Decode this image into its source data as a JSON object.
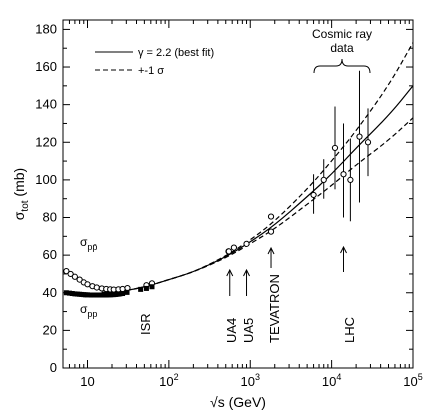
{
  "chart_data": {
    "type": "scatter",
    "title": "",
    "xlabel": "√s (GeV)",
    "ylabel": "σtot (mb)",
    "xscale": "log",
    "xlim": [
      5,
      100000
    ],
    "ylim": [
      0,
      185
    ],
    "x_ticks": [
      10,
      100,
      1000,
      10000,
      100000
    ],
    "x_tick_labels": [
      {
        "base": "10",
        "exp": ""
      },
      {
        "base": "10",
        "exp": "2"
      },
      {
        "base": "10",
        "exp": "3"
      },
      {
        "base": "10",
        "exp": "4"
      },
      {
        "base": "10",
        "exp": "5"
      }
    ],
    "y_ticks": [
      0,
      20,
      40,
      60,
      80,
      100,
      120,
      140,
      160,
      180
    ],
    "legend": {
      "position": "top-left",
      "entries": [
        {
          "label": "γ = 2.2 (best fit)",
          "style": "solid"
        },
        {
          "label": "+-1 σ",
          "style": "dashed"
        }
      ]
    },
    "series": [
      {
        "name": "σpp̄",
        "marker": "open-circle",
        "points": [
          [
            5.5,
            51.5
          ],
          [
            6.2,
            50
          ],
          [
            7,
            48.5
          ],
          [
            8,
            47
          ],
          [
            9,
            45.5
          ],
          [
            10,
            44.5
          ],
          [
            11.5,
            43.5
          ],
          [
            13,
            42.8
          ],
          [
            15,
            42.3
          ],
          [
            17,
            42
          ],
          [
            19,
            41.8
          ],
          [
            21,
            41.7
          ],
          [
            24,
            41.8
          ],
          [
            27,
            42
          ],
          [
            31,
            42.5
          ],
          [
            53,
            44
          ],
          [
            62,
            45
          ],
          [
            540,
            62
          ],
          [
            546,
            62
          ],
          [
            630,
            64
          ],
          [
            900,
            66
          ],
          [
            1800,
            80.5
          ],
          [
            1800,
            72.5
          ]
        ]
      },
      {
        "name": "σpp",
        "marker": "filled-square",
        "points": [
          [
            5.5,
            40
          ],
          [
            6,
            39.8
          ],
          [
            6.5,
            39.6
          ],
          [
            7,
            39.4
          ],
          [
            7.5,
            39.3
          ],
          [
            8,
            39.2
          ],
          [
            8.5,
            39.1
          ],
          [
            9,
            39
          ],
          [
            9.5,
            38.9
          ],
          [
            10,
            38.9
          ],
          [
            11,
            38.8
          ],
          [
            12,
            38.8
          ],
          [
            13,
            38.8
          ],
          [
            14,
            38.8
          ],
          [
            15,
            38.8
          ],
          [
            16,
            38.8
          ],
          [
            17,
            38.8
          ],
          [
            18,
            38.9
          ],
          [
            19,
            38.9
          ],
          [
            20,
            39
          ],
          [
            21,
            39
          ],
          [
            22,
            39.1
          ],
          [
            23,
            39.2
          ],
          [
            24,
            39.3
          ],
          [
            25,
            39.4
          ],
          [
            27,
            39.6
          ],
          [
            30.6,
            40.2
          ],
          [
            45,
            41.8
          ],
          [
            53,
            42.3
          ],
          [
            62,
            43.2
          ]
        ]
      },
      {
        "name": "Cosmic ray data",
        "marker": "open-circle-errorbar",
        "points": [
          {
            "x": 6000,
            "y": 92,
            "lo": 82,
            "hi": 103
          },
          {
            "x": 8000,
            "y": 100,
            "lo": 90,
            "hi": 111
          },
          {
            "x": 11000,
            "y": 117,
            "lo": 95,
            "hi": 139
          },
          {
            "x": 14000,
            "y": 103,
            "lo": 80,
            "hi": 130
          },
          {
            "x": 17000,
            "y": 100,
            "lo": 78,
            "hi": 122
          },
          {
            "x": 22000,
            "y": 123,
            "lo": 88,
            "hi": 158
          },
          {
            "x": 28000,
            "y": 120,
            "lo": 102,
            "hi": 138
          }
        ]
      }
    ],
    "fit_curves": [
      {
        "style": "solid",
        "points": [
          [
            15,
            40.2
          ],
          [
            30,
            41
          ],
          [
            60,
            44
          ],
          [
            100,
            47
          ],
          [
            200,
            51
          ],
          [
            500,
            59
          ],
          [
            1000,
            67
          ],
          [
            2000,
            76
          ],
          [
            5000,
            91
          ],
          [
            10000,
            103
          ],
          [
            20000,
            117
          ],
          [
            50000,
            134
          ],
          [
            100000,
            150
          ]
        ]
      },
      {
        "style": "dashed",
        "points": [
          [
            15,
            40.2
          ],
          [
            30,
            41
          ],
          [
            60,
            44
          ],
          [
            100,
            47
          ],
          [
            200,
            51
          ],
          [
            500,
            59.5
          ],
          [
            1000,
            68
          ],
          [
            2000,
            78
          ],
          [
            5000,
            95
          ],
          [
            10000,
            110
          ],
          [
            20000,
            126
          ],
          [
            50000,
            150
          ],
          [
            100000,
            173
          ]
        ]
      },
      {
        "style": "dashed",
        "points": [
          [
            15,
            40.2
          ],
          [
            30,
            41
          ],
          [
            60,
            44
          ],
          [
            100,
            47
          ],
          [
            200,
            51
          ],
          [
            500,
            58.5
          ],
          [
            1000,
            66
          ],
          [
            2000,
            74
          ],
          [
            5000,
            87
          ],
          [
            10000,
            97
          ],
          [
            20000,
            108
          ],
          [
            50000,
            121
          ],
          [
            100000,
            133
          ]
        ]
      }
    ],
    "annotations": [
      {
        "text": "Cosmic ray",
        "type": "label"
      },
      {
        "text": "data",
        "type": "label"
      },
      {
        "text": "σ",
        "sub": "pp̄",
        "type": "series-label"
      },
      {
        "text": "σ",
        "sub": "pp",
        "type": "series-label"
      },
      {
        "text": "ISR",
        "type": "rotated"
      },
      {
        "text": "UA4",
        "type": "rotated",
        "arrow_x": 560
      },
      {
        "text": "UA5",
        "type": "rotated",
        "arrow_x": 900
      },
      {
        "text": "TEVATRON",
        "type": "rotated",
        "arrow_x": 1800
      },
      {
        "text": "LHC",
        "type": "rotated",
        "arrow_x": 14000
      }
    ]
  }
}
